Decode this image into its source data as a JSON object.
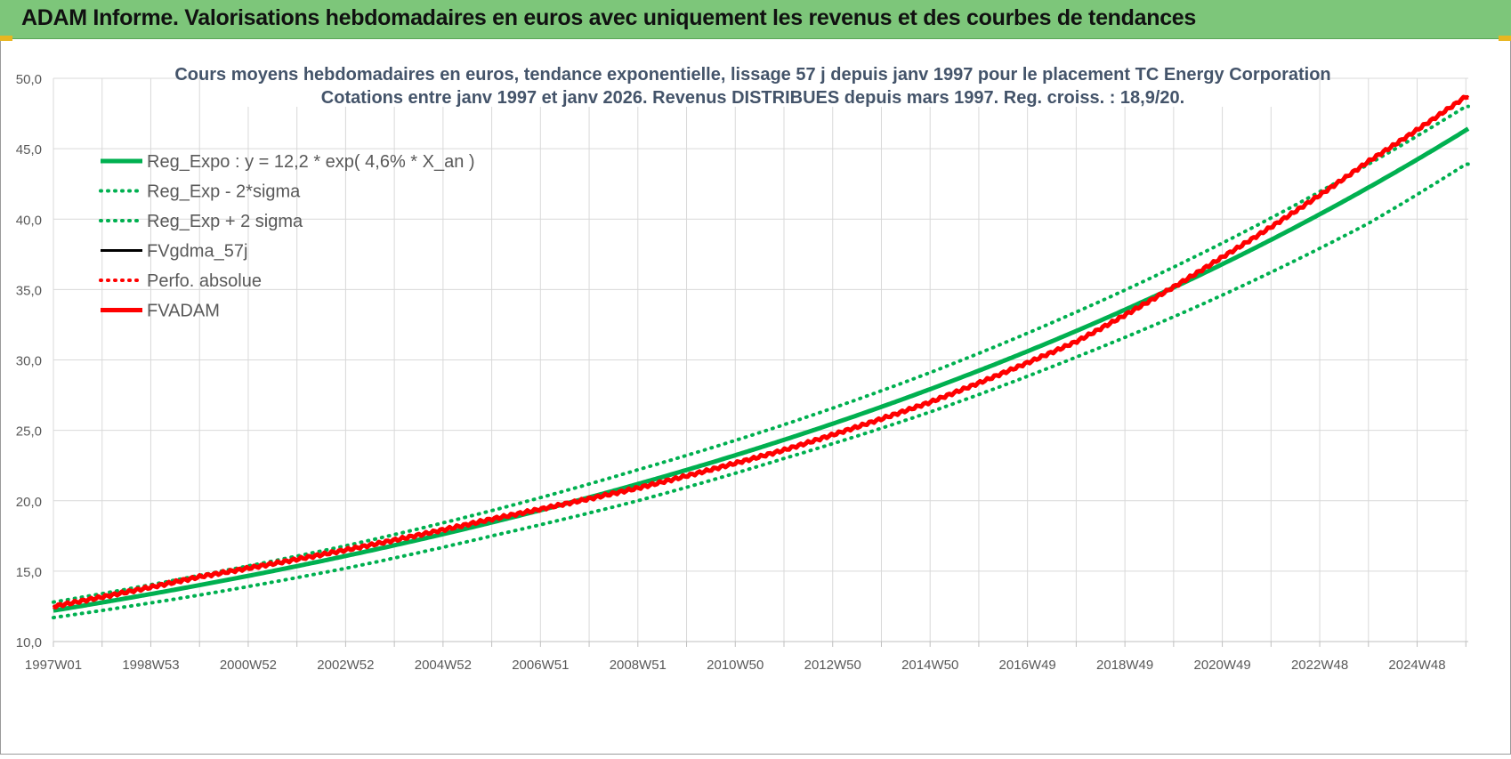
{
  "header": {
    "title": "ADAM Informe. Valorisations hebdomadaires en euros avec uniquement les revenus et des courbes de tendances"
  },
  "colors": {
    "header_bg": "#7dc67a",
    "green_series": "#00b050",
    "red_series": "#ff0000",
    "black_series": "#000000",
    "grid": "#d9d9d9",
    "axis_text": "#595959",
    "title_text": "#44546a"
  },
  "chart_data": {
    "type": "line",
    "title_line1": "Cours moyens hebdomadaires en euros, tendance exponentielle, lissage 57 j depuis janv 1997  pour le placement TC Energy Corporation",
    "title_line2": "Cotations entre janv 1997 et janv 2026. Revenus DISTRIBUES depuis mars 1997.  Reg. croiss. : 18,9/20.",
    "xlabel": "",
    "ylabel": "",
    "ylim": [
      10,
      50
    ],
    "yticks": [
      "50,0",
      "45,0",
      "40,0",
      "35,0",
      "30,0",
      "25,0",
      "20,0",
      "15,0",
      "10,0"
    ],
    "x_tick_labels": [
      "1997W01",
      "1998W53",
      "2000W52",
      "2002W52",
      "2004W52",
      "2006W51",
      "2008W51",
      "2010W50",
      "2012W50",
      "2014W50",
      "2016W49",
      "2018W49",
      "2020W49",
      "2022W48",
      "2024W48"
    ],
    "x_range_years": [
      1997.0,
      2026.05
    ],
    "grid": true,
    "legend_placement": "top-left",
    "legend": [
      {
        "label": "Reg_Expo : y = 12,2 * exp( 4,6% *  X_an )",
        "color": "#00b050",
        "style": "solid"
      },
      {
        "label": "Reg_Exp - 2*sigma",
        "color": "#00b050",
        "style": "dotted"
      },
      {
        "label": "Reg_Exp + 2 sigma",
        "color": "#00b050",
        "style": "dotted"
      },
      {
        "label": "FVgdma_57j",
        "color": "#000000",
        "style": "solid"
      },
      {
        "label": "Perfo. absolue",
        "color": "#ff0000",
        "style": "dotted"
      },
      {
        "label": "FVADAM",
        "color": "#ff0000",
        "style": "solid"
      }
    ],
    "series": [
      {
        "name": "Reg_Expo : y = 12,2 * exp( 4,6% *  X_an )",
        "model": {
          "kind": "exp",
          "a": 12.2,
          "b": 0.046
        },
        "x": [
          1997,
          2000,
          2003,
          2006,
          2009,
          2012,
          2015,
          2018,
          2021,
          2024,
          2026
        ],
        "values": [
          12.2,
          14.0,
          16.0,
          18.4,
          21.1,
          24.2,
          27.7,
          31.8,
          36.4,
          41.8,
          45.8
        ]
      },
      {
        "name": "Reg_Exp - 2*sigma",
        "x": [
          1997,
          2000,
          2003,
          2006,
          2009,
          2012,
          2015,
          2018,
          2021,
          2024,
          2026
        ],
        "values": [
          11.7,
          13.3,
          15.2,
          17.5,
          20.0,
          23.0,
          26.3,
          30.2,
          34.6,
          39.7,
          43.9
        ]
      },
      {
        "name": "Reg_Exp + 2 sigma",
        "x": [
          1997,
          2000,
          2003,
          2006,
          2009,
          2012,
          2015,
          2018,
          2021,
          2024,
          2026
        ],
        "values": [
          12.8,
          14.7,
          16.8,
          19.3,
          22.2,
          25.4,
          29.1,
          33.4,
          38.3,
          43.9,
          48.0
        ]
      },
      {
        "name": "FVgdma_57j",
        "x": [
          1997,
          2000,
          2003,
          2006,
          2009,
          2012,
          2015,
          2018,
          2021,
          2024,
          2026
        ],
        "values": [
          12.5,
          14.6,
          16.5,
          18.7,
          20.9,
          23.6,
          27.0,
          31.3,
          37.3,
          44.1,
          48.7
        ]
      },
      {
        "name": "Perfo. absolue",
        "x": [
          1997,
          2000,
          2003,
          2006,
          2009,
          2012,
          2015,
          2018,
          2021,
          2024,
          2026
        ],
        "values": [
          12.5,
          14.6,
          16.5,
          18.7,
          20.9,
          23.6,
          27.0,
          31.3,
          37.3,
          44.1,
          48.7
        ]
      },
      {
        "name": "FVADAM",
        "x": [
          1997,
          2000,
          2003,
          2006,
          2009,
          2012,
          2015,
          2018,
          2021,
          2024,
          2026
        ],
        "values": [
          12.5,
          14.6,
          16.5,
          18.7,
          20.9,
          23.6,
          27.0,
          31.3,
          37.3,
          44.1,
          48.7
        ],
        "ripple": true
      }
    ]
  }
}
